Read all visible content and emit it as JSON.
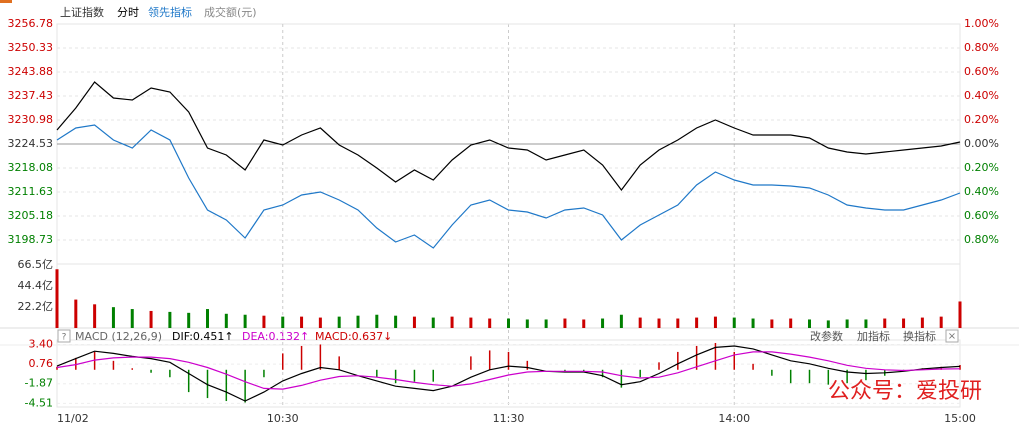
{
  "header": {
    "period": "分时"
  },
  "watermark": "公众号：爱投研",
  "chart_data": [
    {
      "type": "line",
      "title": "成交额(元)",
      "x": [
        0,
        5,
        10,
        15,
        20,
        25,
        30,
        35,
        40,
        45,
        50,
        55,
        60,
        65,
        70,
        75,
        80,
        85,
        90,
        95,
        100,
        105,
        110,
        115,
        120,
        125,
        130,
        135,
        140,
        145,
        150,
        155,
        160,
        165,
        170,
        175,
        180,
        185,
        190,
        195,
        200,
        205,
        210,
        215,
        220,
        225,
        230,
        235,
        240
      ],
      "xlim": [
        0,
        240
      ],
      "series": [
        {
          "name": "上证指数",
          "color": "#000000",
          "values": [
            3228.29,
            3234.21,
            3241.19,
            3236.89,
            3236.36,
            3239.58,
            3238.51,
            3233.13,
            3223.45,
            3221.57,
            3217.54,
            3225.61,
            3224.26,
            3226.95,
            3228.83,
            3224.26,
            3221.57,
            3218.08,
            3214.32,
            3217.54,
            3214.85,
            3220.23,
            3224.26,
            3225.61,
            3223.45,
            3222.92,
            3220.23,
            3221.57,
            3222.92,
            3218.89,
            3212.17,
            3218.89,
            3222.92,
            3225.61,
            3228.83,
            3230.98,
            3228.83,
            3226.95,
            3226.95,
            3226.95,
            3226.14,
            3223.45,
            3222.38,
            3221.84,
            3222.38,
            3222.92,
            3223.45,
            3223.99,
            3225.07
          ]
        },
        {
          "name": "领先指标",
          "color": "#1f78c8",
          "values": [
            3225.61,
            3228.83,
            3229.64,
            3225.61,
            3223.45,
            3228.29,
            3225.61,
            3215.39,
            3206.79,
            3204.1,
            3199.27,
            3206.79,
            3208.14,
            3210.82,
            3211.63,
            3209.48,
            3206.79,
            3201.95,
            3198.19,
            3200.07,
            3196.58,
            3202.76,
            3208.14,
            3209.48,
            3206.79,
            3206.25,
            3204.64,
            3206.79,
            3207.33,
            3205.45,
            3198.73,
            3202.76,
            3205.45,
            3208.14,
            3213.51,
            3217.0,
            3214.85,
            3213.51,
            3213.51,
            3213.24,
            3212.7,
            3210.82,
            3208.14,
            3207.33,
            3206.79,
            3206.79,
            3208.14,
            3209.48,
            3211.36
          ]
        }
      ],
      "ylim": [
        3192.28,
        3256.78
      ],
      "yticks": [
        3256.78,
        3250.33,
        3243.88,
        3237.43,
        3230.98,
        3224.53,
        3218.08,
        3211.63,
        3205.18,
        3198.73
      ],
      "y2lim": [
        -1,
        1
      ],
      "y2ticks": [
        {
          "value": 1,
          "label": "1.00%"
        },
        {
          "value": 0.8,
          "label": "0.80%"
        },
        {
          "value": 0.6,
          "label": "0.60%"
        },
        {
          "value": 0.4,
          "label": "0.40%"
        },
        {
          "value": 0.2,
          "label": "0.20%"
        },
        {
          "value": 0,
          "label": "0.00%"
        },
        {
          "value": -0.2,
          "label": "0.20%"
        },
        {
          "value": -0.4,
          "label": "0.40%"
        },
        {
          "value": -0.6,
          "label": "0.60%"
        },
        {
          "value": -0.8,
          "label": "0.80%"
        }
      ],
      "up_color": "#cc0000",
      "down_color": "#008000",
      "grid": true
    },
    {
      "type": "bar",
      "x": [
        0,
        5,
        10,
        15,
        20,
        25,
        30,
        35,
        40,
        45,
        50,
        55,
        60,
        65,
        70,
        75,
        80,
        85,
        90,
        95,
        100,
        105,
        110,
        115,
        120,
        125,
        130,
        135,
        140,
        145,
        150,
        155,
        160,
        165,
        170,
        175,
        180,
        185,
        190,
        195,
        200,
        205,
        210,
        215,
        220,
        225,
        230,
        235,
        240
      ],
      "xlim": [
        0,
        240
      ],
      "values": [
        62,
        30,
        25,
        22,
        20,
        18,
        17,
        16,
        20,
        15,
        14,
        13,
        12,
        12,
        11,
        12,
        13,
        14,
        13,
        12,
        11,
        12,
        11,
        10,
        10,
        9,
        9,
        10,
        9,
        10,
        14,
        11,
        10,
        10,
        11,
        12,
        11,
        10,
        9,
        10,
        9,
        8,
        9,
        9,
        10,
        10,
        11,
        12,
        28
      ],
      "ylim": [
        0,
        66.5
      ],
      "yticks": [
        {
          "value": 66.5,
          "label": "66.5亿"
        },
        {
          "value": 44.4,
          "label": "44.4亿"
        },
        {
          "value": 22.2,
          "label": "22.2亿"
        }
      ],
      "up_color": "#cc0000",
      "down_color": "#008000"
    },
    {
      "type": "macd",
      "title": "MACD (12,26,9)",
      "buttons": [
        "改参数",
        "加指标",
        "换指标"
      ],
      "x": [
        0,
        5,
        10,
        15,
        20,
        25,
        30,
        35,
        40,
        45,
        50,
        55,
        60,
        65,
        70,
        75,
        80,
        85,
        90,
        95,
        100,
        105,
        110,
        115,
        120,
        125,
        130,
        135,
        140,
        145,
        150,
        155,
        160,
        165,
        170,
        175,
        180,
        185,
        190,
        195,
        200,
        205,
        210,
        215,
        220,
        225,
        230,
        235,
        240
      ],
      "xlim": [
        0,
        240
      ],
      "xticks": [
        {
          "value": 0,
          "label": "11/02"
        },
        {
          "value": 60,
          "label": "10:30"
        },
        {
          "value": 120,
          "label": "11:30"
        },
        {
          "value": 180,
          "label": "14:00"
        },
        {
          "value": 240,
          "label": "15:00"
        }
      ],
      "series": [
        {
          "name": "DIF:0.451↑",
          "color": "#000000",
          "values": [
            0.5,
            1.5,
            2.5,
            2.2,
            1.8,
            1.5,
            1.0,
            -0.5,
            -2.0,
            -3.0,
            -4.2,
            -3.0,
            -1.5,
            -0.5,
            0.3,
            0.0,
            -0.8,
            -1.5,
            -2.2,
            -2.5,
            -2.8,
            -2.2,
            -1.0,
            0.0,
            0.5,
            0.3,
            -0.2,
            -0.3,
            -0.3,
            -0.8,
            -2.0,
            -1.6,
            -0.5,
            0.8,
            2.0,
            3.0,
            3.2,
            2.8,
            2.0,
            1.2,
            0.8,
            0.2,
            -0.3,
            -0.5,
            -0.4,
            -0.2,
            0.1,
            0.3,
            0.45
          ]
        },
        {
          "name": "DEA:0.132↑",
          "color": "#cc00cc",
          "values": [
            0.3,
            0.7,
            1.3,
            1.6,
            1.7,
            1.7,
            1.5,
            1.0,
            0.3,
            -0.6,
            -1.6,
            -2.5,
            -2.6,
            -2.1,
            -1.4,
            -0.9,
            -0.8,
            -1.0,
            -1.3,
            -1.7,
            -2.0,
            -2.2,
            -1.9,
            -1.3,
            -0.7,
            -0.3,
            -0.2,
            -0.2,
            -0.2,
            -0.3,
            -0.8,
            -1.1,
            -1.0,
            -0.4,
            0.4,
            1.2,
            2.0,
            2.4,
            2.4,
            2.1,
            1.7,
            1.2,
            0.6,
            0.2,
            0.0,
            -0.1,
            0.0,
            0.1,
            0.13
          ]
        },
        {
          "name": "MACD:0.637↓",
          "color": "#cc0000",
          "values": [
            0.4,
            1.6,
            2.4,
            1.2,
            0.2,
            -0.4,
            -1.0,
            -3.0,
            -3.8,
            -4.2,
            -4.4,
            -1.0,
            2.2,
            3.2,
            3.4,
            1.8,
            0.0,
            -1.0,
            -1.8,
            -1.6,
            -1.6,
            0.0,
            1.8,
            2.6,
            2.4,
            1.2,
            0.0,
            -0.2,
            -0.2,
            -1.0,
            -2.4,
            -1.0,
            1.0,
            2.4,
            3.2,
            3.6,
            2.4,
            0.8,
            -0.8,
            -1.8,
            -1.8,
            -2.0,
            -1.8,
            -1.4,
            -0.8,
            -0.2,
            0.2,
            0.4,
            0.64
          ]
        }
      ],
      "ylim": [
        -5,
        4
      ],
      "yticks": [
        {
          "value": 3.4,
          "label": "3.40"
        },
        {
          "value": 0.76,
          "label": "0.76"
        },
        {
          "value": -1.87,
          "label": "-1.87"
        },
        {
          "value": -4.51,
          "label": "-4.51"
        }
      ],
      "up_color": "#cc0000",
      "down_color": "#008000"
    }
  ]
}
